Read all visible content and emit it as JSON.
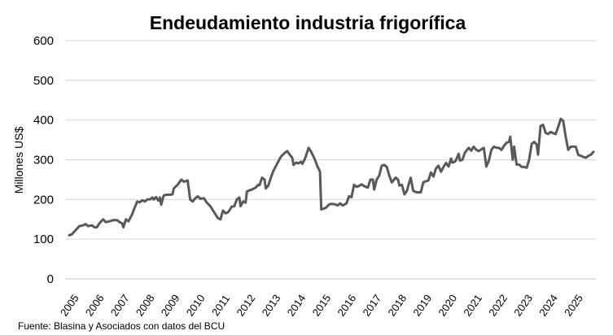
{
  "chart_data": {
    "type": "line",
    "title": "Endeudamiento industria frigorífica",
    "ylabel": "Millones US$",
    "xlabel": "",
    "ylim": [
      0,
      600
    ],
    "yticks": [
      0,
      100,
      200,
      300,
      400,
      500,
      600
    ],
    "x_tick_labels": [
      "2005",
      "2006",
      "2007",
      "2008",
      "2009",
      "2010",
      "2011",
      "2012",
      "2013",
      "2014",
      "2015",
      "2016",
      "2017",
      "2018",
      "2019",
      "2020",
      "2021",
      "2022",
      "2023",
      "2024",
      "2025"
    ],
    "x_start_year": 2005,
    "x_end_year": 2025.8,
    "source": "Fuente: Blasina y Asociados con datos del BCU",
    "series": [
      {
        "name": "Endeudamiento",
        "color": "#595959",
        "points": [
          [
            2005.0,
            110
          ],
          [
            2005.1,
            112
          ],
          [
            2005.25,
            122
          ],
          [
            2005.4,
            133
          ],
          [
            2005.55,
            135
          ],
          [
            2005.65,
            138
          ],
          [
            2005.75,
            133
          ],
          [
            2005.9,
            135
          ],
          [
            2006.0,
            130
          ],
          [
            2006.1,
            130
          ],
          [
            2006.2,
            140
          ],
          [
            2006.3,
            147
          ],
          [
            2006.35,
            150
          ],
          [
            2006.45,
            143
          ],
          [
            2006.6,
            145
          ],
          [
            2006.75,
            148
          ],
          [
            2006.9,
            148
          ],
          [
            2007.0,
            143
          ],
          [
            2007.1,
            140
          ],
          [
            2007.15,
            130
          ],
          [
            2007.25,
            150
          ],
          [
            2007.35,
            145
          ],
          [
            2007.5,
            163
          ],
          [
            2007.6,
            180
          ],
          [
            2007.7,
            195
          ],
          [
            2007.8,
            193
          ],
          [
            2007.9,
            198
          ],
          [
            2008.0,
            195
          ],
          [
            2008.1,
            200
          ],
          [
            2008.2,
            200
          ],
          [
            2008.3,
            205
          ],
          [
            2008.35,
            200
          ],
          [
            2008.45,
            206
          ],
          [
            2008.5,
            200
          ],
          [
            2008.55,
            197
          ],
          [
            2008.6,
            205
          ],
          [
            2008.65,
            187
          ],
          [
            2008.75,
            210
          ],
          [
            2008.85,
            212
          ],
          [
            2009.0,
            212
          ],
          [
            2009.1,
            213
          ],
          [
            2009.15,
            228
          ],
          [
            2009.3,
            237
          ],
          [
            2009.45,
            250
          ],
          [
            2009.55,
            245
          ],
          [
            2009.7,
            248
          ],
          [
            2009.8,
            200
          ],
          [
            2009.9,
            195
          ],
          [
            2010.0,
            203
          ],
          [
            2010.1,
            208
          ],
          [
            2010.2,
            202
          ],
          [
            2010.35,
            203
          ],
          [
            2010.45,
            193
          ],
          [
            2010.6,
            183
          ],
          [
            2010.75,
            168
          ],
          [
            2010.9,
            153
          ],
          [
            2011.0,
            150
          ],
          [
            2011.1,
            172
          ],
          [
            2011.2,
            165
          ],
          [
            2011.3,
            168
          ],
          [
            2011.35,
            172
          ],
          [
            2011.45,
            182
          ],
          [
            2011.55,
            183
          ],
          [
            2011.65,
            200
          ],
          [
            2011.75,
            205
          ],
          [
            2011.8,
            183
          ],
          [
            2011.9,
            195
          ],
          [
            2012.0,
            192
          ],
          [
            2012.05,
            220
          ],
          [
            2012.15,
            223
          ],
          [
            2012.25,
            225
          ],
          [
            2012.4,
            230
          ],
          [
            2012.5,
            237
          ],
          [
            2012.55,
            236
          ],
          [
            2012.65,
            255
          ],
          [
            2012.75,
            250
          ],
          [
            2012.8,
            228
          ],
          [
            2012.9,
            235
          ],
          [
            2013.0,
            255
          ],
          [
            2013.1,
            272
          ],
          [
            2013.25,
            290
          ],
          [
            2013.4,
            308
          ],
          [
            2013.55,
            317
          ],
          [
            2013.65,
            322
          ],
          [
            2013.75,
            313
          ],
          [
            2013.85,
            305
          ],
          [
            2013.9,
            287
          ],
          [
            2014.0,
            293
          ],
          [
            2014.1,
            291
          ],
          [
            2014.2,
            295
          ],
          [
            2014.25,
            290
          ],
          [
            2014.35,
            302
          ],
          [
            2014.5,
            330
          ],
          [
            2014.6,
            320
          ],
          [
            2014.75,
            300
          ],
          [
            2014.85,
            283
          ],
          [
            2014.95,
            270
          ],
          [
            2015.0,
            175
          ],
          [
            2015.1,
            177
          ],
          [
            2015.2,
            180
          ],
          [
            2015.3,
            187
          ],
          [
            2015.4,
            189
          ],
          [
            2015.55,
            188
          ],
          [
            2015.65,
            185
          ],
          [
            2015.75,
            190
          ],
          [
            2015.85,
            185
          ],
          [
            2016.0,
            190
          ],
          [
            2016.1,
            208
          ],
          [
            2016.2,
            206
          ],
          [
            2016.3,
            237
          ],
          [
            2016.4,
            232
          ],
          [
            2016.5,
            234
          ],
          [
            2016.6,
            238
          ],
          [
            2016.75,
            232
          ],
          [
            2016.85,
            230
          ],
          [
            2016.95,
            250
          ],
          [
            2017.05,
            250
          ],
          [
            2017.1,
            225
          ],
          [
            2017.2,
            250
          ],
          [
            2017.3,
            260
          ],
          [
            2017.4,
            285
          ],
          [
            2017.5,
            287
          ],
          [
            2017.6,
            282
          ],
          [
            2017.7,
            260
          ],
          [
            2017.8,
            243
          ],
          [
            2017.95,
            255
          ],
          [
            2018.05,
            250
          ],
          [
            2018.1,
            235
          ],
          [
            2018.2,
            237
          ],
          [
            2018.3,
            213
          ],
          [
            2018.4,
            222
          ],
          [
            2018.5,
            245
          ],
          [
            2018.55,
            255
          ],
          [
            2018.65,
            222
          ],
          [
            2018.7,
            220
          ],
          [
            2018.8,
            218
          ],
          [
            2018.95,
            218
          ],
          [
            2019.05,
            243
          ],
          [
            2019.15,
            246
          ],
          [
            2019.25,
            248
          ],
          [
            2019.35,
            268
          ],
          [
            2019.45,
            258
          ],
          [
            2019.55,
            278
          ],
          [
            2019.65,
            285
          ],
          [
            2019.75,
            270
          ],
          [
            2019.85,
            282
          ],
          [
            2019.95,
            292
          ],
          [
            2020.05,
            283
          ],
          [
            2020.15,
            303
          ],
          [
            2020.2,
            293
          ],
          [
            2020.3,
            295
          ],
          [
            2020.35,
            300
          ],
          [
            2020.45,
            315
          ],
          [
            2020.5,
            298
          ],
          [
            2020.6,
            300
          ],
          [
            2020.7,
            318
          ],
          [
            2020.85,
            330
          ],
          [
            2020.95,
            323
          ],
          [
            2021.05,
            333
          ],
          [
            2021.15,
            325
          ],
          [
            2021.25,
            322
          ],
          [
            2021.35,
            326
          ],
          [
            2021.45,
            330
          ],
          [
            2021.55,
            283
          ],
          [
            2021.65,
            298
          ],
          [
            2021.75,
            325
          ],
          [
            2021.85,
            333
          ],
          [
            2021.95,
            330
          ],
          [
            2022.05,
            330
          ],
          [
            2022.15,
            325
          ],
          [
            2022.25,
            335
          ],
          [
            2022.35,
            343
          ],
          [
            2022.45,
            345
          ],
          [
            2022.5,
            358
          ],
          [
            2022.6,
            300
          ],
          [
            2022.65,
            333
          ],
          [
            2022.75,
            288
          ],
          [
            2022.85,
            288
          ],
          [
            2022.95,
            282
          ],
          [
            2023.05,
            282
          ],
          [
            2023.15,
            280
          ],
          [
            2023.25,
            300
          ],
          [
            2023.35,
            340
          ],
          [
            2023.45,
            345
          ],
          [
            2023.55,
            338
          ],
          [
            2023.6,
            313
          ],
          [
            2023.7,
            385
          ],
          [
            2023.8,
            388
          ],
          [
            2023.9,
            368
          ],
          [
            2024.0,
            365
          ],
          [
            2024.1,
            370
          ],
          [
            2024.2,
            367
          ],
          [
            2024.3,
            365
          ],
          [
            2024.4,
            383
          ],
          [
            2024.5,
            403
          ],
          [
            2024.6,
            398
          ],
          [
            2024.7,
            358
          ],
          [
            2024.8,
            325
          ],
          [
            2024.9,
            333
          ],
          [
            2025.0,
            333
          ],
          [
            2025.1,
            333
          ],
          [
            2025.2,
            312
          ],
          [
            2025.3,
            310
          ],
          [
            2025.4,
            307
          ],
          [
            2025.5,
            305
          ],
          [
            2025.6,
            310
          ],
          [
            2025.7,
            313
          ],
          [
            2025.8,
            320
          ]
        ]
      }
    ]
  }
}
